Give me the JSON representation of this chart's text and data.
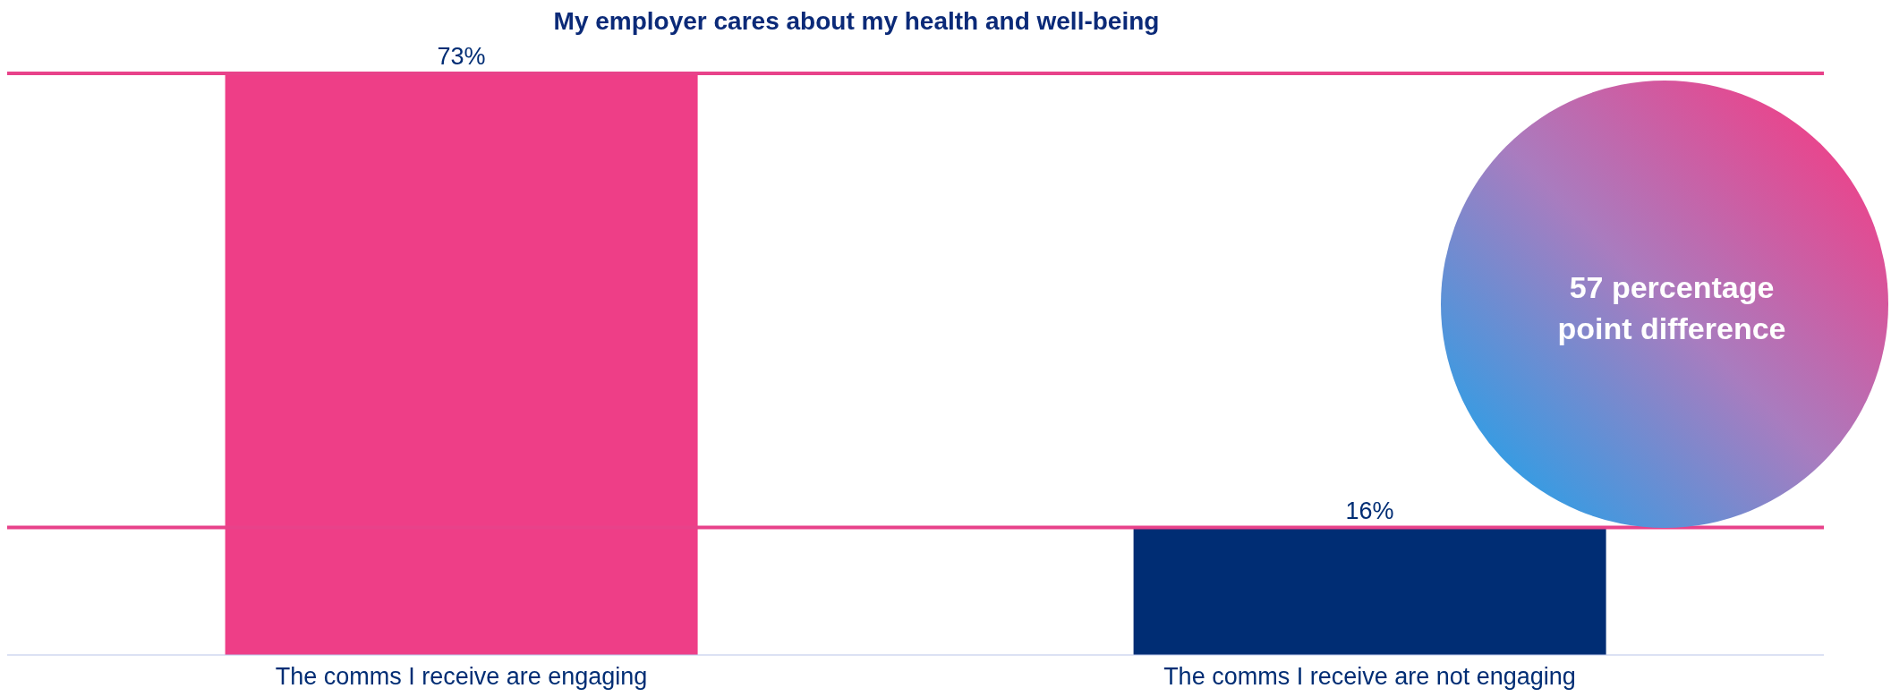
{
  "chart_data": {
    "type": "bar",
    "title": "My employer cares about my health and well-being",
    "categories": [
      "The comms I receive are engaging",
      "The comms I receive are not engaging"
    ],
    "values": [
      73,
      16
    ],
    "value_labels": [
      "73%",
      "16%"
    ],
    "colors": [
      "#ee3e87",
      "#002d74"
    ],
    "ref_lines": [
      {
        "axis": "y",
        "value": 73,
        "color": "#e8428a"
      },
      {
        "axis": "y",
        "value": 16,
        "color": "#e8428a"
      }
    ],
    "annotations": [
      "57 percentage point difference"
    ]
  }
}
